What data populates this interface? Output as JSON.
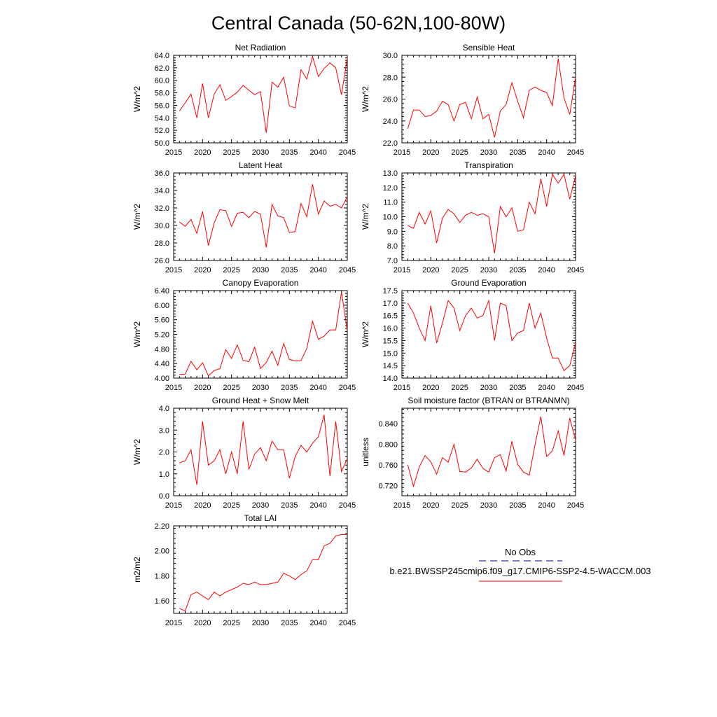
{
  "page_title": "Central Canada (50-62N,100-80W)",
  "colors": {
    "model_line": "#ff0000",
    "obs_line": "#00008b",
    "axis": "#000000"
  },
  "legend": {
    "obs_label": "No Obs",
    "model_label": "b.e21.BWSSP245cmip6.f09_g17.CMIP6-SSP2-4.5-WACCM.003"
  },
  "chart_data": [
    {
      "type": "line",
      "title": "Net Radiation",
      "xlabel": "",
      "ylabel": "W/m^2",
      "xlim": [
        2015,
        2045
      ],
      "ylim": [
        50.0,
        64.0
      ],
      "xticks": [
        2015,
        2020,
        2025,
        2030,
        2035,
        2040,
        2045
      ],
      "yticks": [
        "50.0",
        "52.0",
        "54.0",
        "56.0",
        "58.0",
        "60.0",
        "62.0",
        "64.0"
      ],
      "x": [
        2016,
        2017,
        2018,
        2019,
        2020,
        2021,
        2022,
        2023,
        2024,
        2025,
        2026,
        2027,
        2028,
        2029,
        2030,
        2031,
        2032,
        2033,
        2034,
        2035,
        2036,
        2037,
        2038,
        2039,
        2040,
        2041,
        2042,
        2043,
        2044,
        2045
      ],
      "series": [
        {
          "values": [
            55.1,
            56.4,
            57.8,
            54.0,
            59.5,
            54.0,
            57.8,
            59.3,
            56.8,
            57.4,
            58.1,
            59.2,
            58.4,
            57.7,
            58.2,
            51.6,
            59.7,
            58.9,
            60.5,
            55.9,
            55.6,
            61.7,
            60.2,
            63.8,
            60.6,
            61.9,
            62.8,
            62.0,
            57.7,
            63.6
          ]
        }
      ]
    },
    {
      "type": "line",
      "title": "Sensible Heat",
      "xlabel": "",
      "ylabel": "W/m^2",
      "xlim": [
        2015,
        2045
      ],
      "ylim": [
        22.0,
        30.0
      ],
      "xticks": [
        2015,
        2020,
        2025,
        2030,
        2035,
        2040,
        2045
      ],
      "yticks": [
        "22.0",
        "24.0",
        "26.0",
        "28.0",
        "30.0"
      ],
      "x": [
        2016,
        2017,
        2018,
        2019,
        2020,
        2021,
        2022,
        2023,
        2024,
        2025,
        2026,
        2027,
        2028,
        2029,
        2030,
        2031,
        2032,
        2033,
        2034,
        2035,
        2036,
        2037,
        2038,
        2039,
        2040,
        2041,
        2042,
        2043,
        2044,
        2045
      ],
      "series": [
        {
          "values": [
            23.3,
            25.0,
            25.0,
            24.4,
            24.5,
            24.9,
            25.8,
            25.5,
            24.0,
            25.5,
            25.7,
            24.2,
            26.2,
            24.2,
            24.6,
            22.5,
            24.9,
            25.5,
            27.5,
            25.8,
            24.3,
            26.8,
            27.1,
            26.8,
            26.6,
            25.4,
            29.7,
            26.1,
            24.6,
            28.0
          ]
        }
      ]
    },
    {
      "type": "line",
      "title": "Latent Heat",
      "xlabel": "",
      "ylabel": "W/m^2",
      "xlim": [
        2015,
        2045
      ],
      "ylim": [
        26.0,
        36.0
      ],
      "xticks": [
        2015,
        2020,
        2025,
        2030,
        2035,
        2040,
        2045
      ],
      "yticks": [
        "26.0",
        "28.0",
        "30.0",
        "32.0",
        "34.0",
        "36.0"
      ],
      "x": [
        2016,
        2017,
        2018,
        2019,
        2020,
        2021,
        2022,
        2023,
        2024,
        2025,
        2026,
        2027,
        2028,
        2029,
        2030,
        2031,
        2032,
        2033,
        2034,
        2035,
        2036,
        2037,
        2038,
        2039,
        2040,
        2041,
        2042,
        2043,
        2044,
        2045
      ],
      "series": [
        {
          "values": [
            30.4,
            29.9,
            30.7,
            29.1,
            31.6,
            27.7,
            30.3,
            31.8,
            31.7,
            29.9,
            31.4,
            31.5,
            30.9,
            31.6,
            31.3,
            27.5,
            32.4,
            31.1,
            30.9,
            29.2,
            29.3,
            32.5,
            31.0,
            34.7,
            31.3,
            32.8,
            32.2,
            32.4,
            32.0,
            33.3
          ]
        }
      ]
    },
    {
      "type": "line",
      "title": "Transpiration",
      "xlabel": "",
      "ylabel": "W/m^2",
      "xlim": [
        2015,
        2045
      ],
      "ylim": [
        7.0,
        13.0
      ],
      "xticks": [
        2015,
        2020,
        2025,
        2030,
        2035,
        2040,
        2045
      ],
      "yticks": [
        "7.0",
        "8.0",
        "9.0",
        "10.0",
        "11.0",
        "12.0",
        "13.0"
      ],
      "x": [
        2016,
        2017,
        2018,
        2019,
        2020,
        2021,
        2022,
        2023,
        2024,
        2025,
        2026,
        2027,
        2028,
        2029,
        2030,
        2031,
        2032,
        2033,
        2034,
        2035,
        2036,
        2037,
        2038,
        2039,
        2040,
        2041,
        2042,
        2043,
        2044,
        2045
      ],
      "series": [
        {
          "values": [
            9.4,
            9.2,
            10.3,
            9.5,
            10.4,
            8.2,
            9.9,
            10.5,
            10.2,
            9.6,
            10.1,
            10.3,
            10.1,
            10.2,
            10.0,
            7.5,
            10.7,
            10.0,
            10.6,
            9.0,
            9.1,
            11.0,
            10.2,
            12.6,
            10.7,
            12.9,
            12.3,
            12.9,
            11.2,
            12.8
          ]
        }
      ]
    },
    {
      "type": "line",
      "title": "Canopy Evaporation",
      "xlabel": "",
      "ylabel": "W/m^2",
      "xlim": [
        2015,
        2045
      ],
      "ylim": [
        4.0,
        6.4
      ],
      "xticks": [
        2015,
        2020,
        2025,
        2030,
        2035,
        2040,
        2045
      ],
      "yticks": [
        "4.00",
        "4.40",
        "4.80",
        "5.20",
        "5.60",
        "6.00",
        "6.40"
      ],
      "x": [
        2016,
        2017,
        2018,
        2019,
        2020,
        2021,
        2022,
        2023,
        2024,
        2025,
        2026,
        2027,
        2028,
        2029,
        2030,
        2031,
        2032,
        2033,
        2034,
        2035,
        2036,
        2037,
        2038,
        2039,
        2040,
        2041,
        2042,
        2043,
        2044,
        2045
      ],
      "series": [
        {
          "values": [
            4.1,
            4.11,
            4.46,
            4.23,
            4.42,
            4.06,
            4.21,
            4.26,
            4.78,
            4.54,
            4.91,
            4.49,
            4.45,
            4.85,
            4.26,
            4.43,
            4.74,
            4.35,
            4.95,
            4.51,
            4.47,
            4.48,
            4.81,
            5.56,
            5.06,
            5.15,
            5.32,
            5.32,
            6.36,
            5.3
          ]
        }
      ]
    },
    {
      "type": "line",
      "title": "Ground Evaporation",
      "xlabel": "",
      "ylabel": "W/m^2",
      "xlim": [
        2015,
        2045
      ],
      "ylim": [
        14.0,
        17.5
      ],
      "xticks": [
        2015,
        2020,
        2025,
        2030,
        2035,
        2040,
        2045
      ],
      "yticks": [
        "14.0",
        "14.5",
        "15.0",
        "15.5",
        "16.0",
        "16.5",
        "17.0",
        "17.5"
      ],
      "x": [
        2016,
        2017,
        2018,
        2019,
        2020,
        2021,
        2022,
        2023,
        2024,
        2025,
        2026,
        2027,
        2028,
        2029,
        2030,
        2031,
        2032,
        2033,
        2034,
        2035,
        2036,
        2037,
        2038,
        2039,
        2040,
        2041,
        2042,
        2043,
        2044,
        2045
      ],
      "series": [
        {
          "values": [
            17.0,
            16.6,
            16.0,
            15.5,
            16.9,
            15.4,
            16.2,
            17.1,
            16.8,
            15.9,
            16.5,
            16.8,
            16.4,
            16.5,
            17.1,
            15.5,
            17.0,
            16.9,
            15.5,
            15.8,
            15.9,
            17.0,
            16.0,
            16.6,
            15.6,
            14.8,
            14.8,
            14.3,
            14.5,
            15.4
          ]
        }
      ]
    },
    {
      "type": "line",
      "title": "Ground Heat + Snow Melt",
      "xlabel": "",
      "ylabel": "W/m^2",
      "xlim": [
        2015,
        2045
      ],
      "ylim": [
        0.0,
        4.0
      ],
      "xticks": [
        2015,
        2020,
        2025,
        2030,
        2035,
        2040,
        2045
      ],
      "yticks": [
        "0.0",
        "1.0",
        "2.0",
        "3.0",
        "4.0"
      ],
      "x": [
        2016,
        2017,
        2018,
        2019,
        2020,
        2021,
        2022,
        2023,
        2024,
        2025,
        2026,
        2027,
        2028,
        2029,
        2030,
        2031,
        2032,
        2033,
        2034,
        2035,
        2036,
        2037,
        2038,
        2039,
        2040,
        2041,
        2042,
        2043,
        2044,
        2045
      ],
      "series": [
        {
          "values": [
            1.5,
            1.6,
            2.1,
            0.5,
            3.4,
            1.4,
            1.6,
            2.1,
            1.0,
            2.0,
            1.0,
            3.4,
            1.2,
            1.9,
            2.2,
            1.6,
            2.5,
            2.1,
            2.1,
            0.8,
            1.8,
            2.3,
            2.0,
            2.4,
            2.7,
            3.7,
            0.9,
            3.4,
            1.1,
            1.7
          ]
        }
      ]
    },
    {
      "type": "line",
      "title": "Soil moisture factor (BTRAN or BTRANMN)",
      "xlabel": "",
      "ylabel": "unitless",
      "xlim": [
        2015,
        2045
      ],
      "ylim": [
        0.7,
        0.87
      ],
      "xticks": [
        2015,
        2020,
        2025,
        2030,
        2035,
        2040,
        2045
      ],
      "yticks": [
        "0.720",
        "0.760",
        "0.800",
        "0.840"
      ],
      "x": [
        2016,
        2017,
        2018,
        2019,
        2020,
        2021,
        2022,
        2023,
        2024,
        2025,
        2026,
        2027,
        2028,
        2029,
        2030,
        2031,
        2032,
        2033,
        2034,
        2035,
        2036,
        2037,
        2038,
        2039,
        2040,
        2041,
        2042,
        2043,
        2044,
        2045
      ],
      "series": [
        {
          "values": [
            0.76,
            0.718,
            0.756,
            0.778,
            0.766,
            0.742,
            0.774,
            0.765,
            0.8,
            0.747,
            0.746,
            0.754,
            0.771,
            0.753,
            0.746,
            0.774,
            0.78,
            0.748,
            0.806,
            0.761,
            0.746,
            0.74,
            0.799,
            0.854,
            0.776,
            0.787,
            0.826,
            0.778,
            0.851,
            0.808
          ]
        }
      ]
    },
    {
      "type": "line",
      "title": "Total LAI",
      "xlabel": "",
      "ylabel": "m2/m2",
      "xlim": [
        2015,
        2045
      ],
      "ylim": [
        1.5,
        2.2
      ],
      "xticks": [
        2015,
        2020,
        2025,
        2030,
        2035,
        2040,
        2045
      ],
      "yticks": [
        "1.60",
        "1.80",
        "2.00",
        "2.20"
      ],
      "x": [
        2016,
        2017,
        2018,
        2019,
        2020,
        2021,
        2022,
        2023,
        2024,
        2025,
        2026,
        2027,
        2028,
        2029,
        2030,
        2031,
        2032,
        2033,
        2034,
        2035,
        2036,
        2037,
        2038,
        2039,
        2040,
        2041,
        2042,
        2043,
        2044,
        2045
      ],
      "series": [
        {
          "values": [
            1.54,
            1.52,
            1.65,
            1.67,
            1.64,
            1.61,
            1.67,
            1.64,
            1.67,
            1.69,
            1.71,
            1.74,
            1.73,
            1.75,
            1.73,
            1.73,
            1.74,
            1.75,
            1.82,
            1.8,
            1.77,
            1.81,
            1.84,
            1.93,
            1.93,
            2.04,
            2.06,
            2.12,
            2.13,
            2.13
          ]
        }
      ]
    }
  ]
}
